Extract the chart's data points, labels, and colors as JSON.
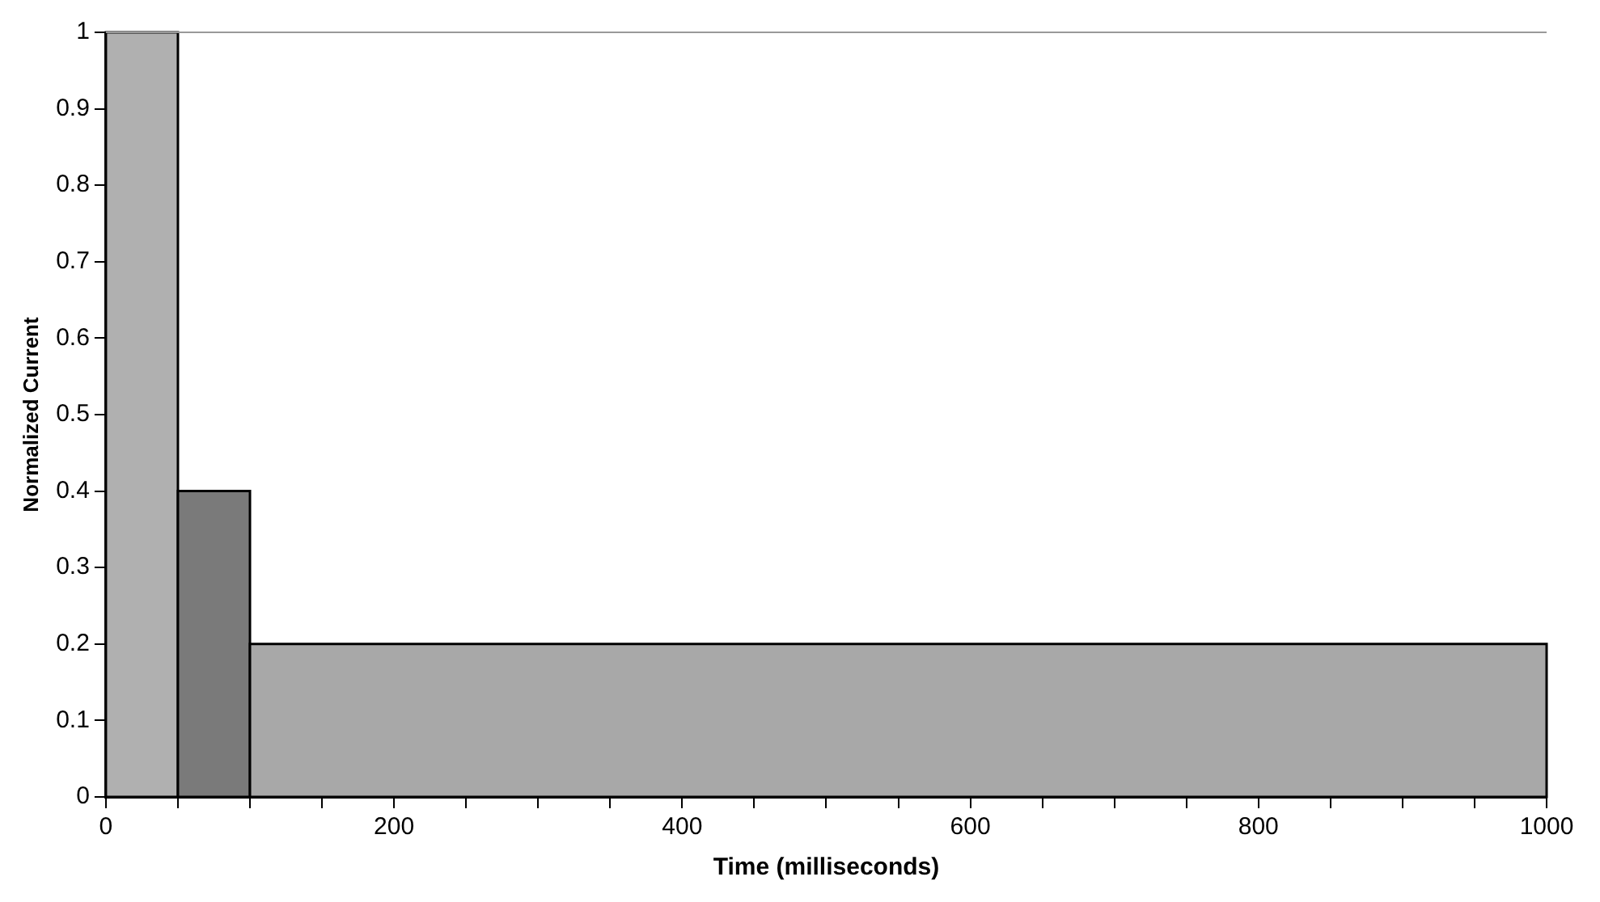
{
  "chart_data": {
    "type": "histogram",
    "xlabel": "Time (milliseconds)",
    "ylabel": "Normalized Current",
    "bins": [
      0,
      50,
      100,
      1000
    ],
    "values": [
      1,
      0.4,
      0.2
    ],
    "colors": [
      "#b0b0b0",
      "#7a7a7a",
      "#a8a8a8"
    ],
    "xlim": [
      0,
      1000
    ],
    "ylim": [
      0,
      1
    ],
    "xticks": [
      0,
      {
        "value": 50,
        "label": null
      },
      {
        "value": 100,
        "label": null
      },
      {
        "value": 150,
        "label": null
      },
      200,
      {
        "value": 250,
        "label": null
      },
      {
        "value": 300,
        "label": null
      },
      {
        "value": 350,
        "label": null
      },
      400,
      {
        "value": 450,
        "label": null
      },
      {
        "value": 500,
        "label": null
      },
      {
        "value": 550,
        "label": null
      },
      600,
      {
        "value": 650,
        "label": null
      },
      {
        "value": 700,
        "label": null
      },
      {
        "value": 750,
        "label": null
      },
      800,
      {
        "value": 850,
        "label": null
      },
      {
        "value": 900,
        "label": null
      },
      {
        "value": 950,
        "label": null
      },
      1000
    ],
    "yticks": [
      0,
      0.1,
      0.2,
      0.3,
      0.4,
      0.5,
      0.6,
      0.7,
      0.8,
      0.9,
      1
    ],
    "grid": false,
    "legend": false
  }
}
